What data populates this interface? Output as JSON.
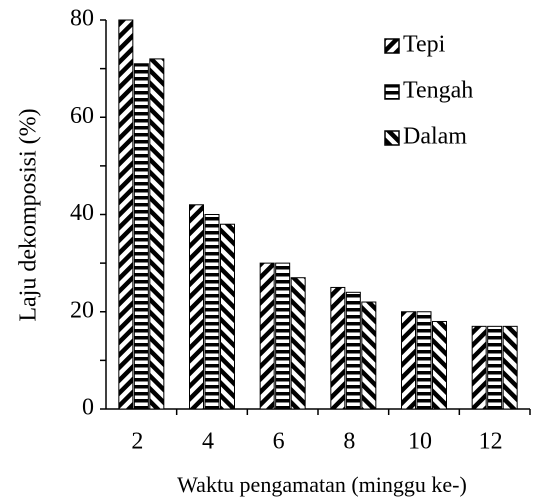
{
  "chart_data": {
    "type": "bar",
    "xlabel": "Waktu pengamatan (minggu ke-)",
    "ylabel": "Laju dekomposisi (%)",
    "categories": [
      "2",
      "4",
      "6",
      "8",
      "10",
      "12"
    ],
    "series": [
      {
        "name": "Tepi",
        "color": "#000000",
        "pattern": "forward-diagonal",
        "values": [
          80,
          42,
          30,
          25,
          20,
          17
        ]
      },
      {
        "name": "Tengah",
        "color": "#000000",
        "pattern": "horizontal",
        "values": [
          71,
          40,
          30,
          24,
          20,
          17
        ]
      },
      {
        "name": "Dalam",
        "color": "#000000",
        "pattern": "backward-diagonal",
        "values": [
          72,
          38,
          27,
          22,
          18,
          17
        ]
      }
    ],
    "ylim": [
      0,
      80
    ],
    "yticks": [
      0,
      20,
      40,
      60,
      80
    ],
    "minor_yticks": [
      10,
      30,
      50,
      70
    ],
    "grid": false,
    "legend": "upper right"
  }
}
